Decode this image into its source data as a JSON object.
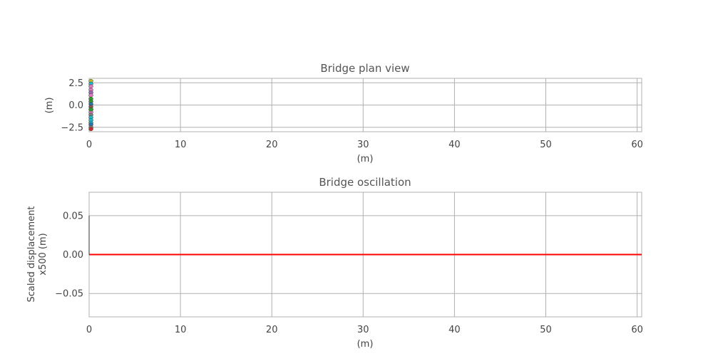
{
  "chart_data": [
    {
      "type": "scatter",
      "title": "Bridge plan view",
      "xlabel": "(m)",
      "ylabel": "(m)",
      "xlim": [
        0,
        60.5
      ],
      "ylim": [
        -3,
        3
      ],
      "xticks": [
        0,
        10,
        20,
        30,
        40,
        50,
        60
      ],
      "xtick_labels": [
        "0",
        "10",
        "20",
        "30",
        "40",
        "50",
        "60"
      ],
      "yticks": [
        2.5,
        0.0,
        -2.5
      ],
      "ytick_labels": [
        "2.5",
        "0.0",
        "−2.5"
      ],
      "grid": true,
      "series": [
        {
          "x": [
            0.2,
            0.2,
            0.2,
            0.2,
            0.2,
            0.2,
            0.2,
            0.2,
            0.2,
            0.2,
            0.2,
            0.2,
            0.2,
            0.2,
            0.2,
            0.2,
            0.2,
            0.2,
            0.2,
            0.2
          ],
          "y": [
            2.7,
            2.4,
            2.1,
            1.7,
            1.4,
            1.1,
            0.7,
            0.4,
            0.1,
            -0.2,
            -0.5,
            -0.8,
            -1.1,
            -1.4,
            -1.7,
            -2.0,
            -2.2,
            -2.5,
            -2.7,
            -0.5
          ],
          "colors": [
            "#bcbd22",
            "#17becf",
            "#e377c2",
            "#e377c2",
            "#9467bd",
            "#e377c2",
            "#2ca02c",
            "#2ca02c",
            "#1f77b4",
            "#8c564b",
            "#ff7f0e",
            "#e377c2",
            "#7f7f7f",
            "#17becf",
            "#17becf",
            "#17becf",
            "#1f77b4",
            "#7f7f7f",
            "#d62728",
            "#2ca02c"
          ]
        }
      ]
    },
    {
      "type": "line",
      "title": "Bridge oscillation",
      "xlabel": "(m)",
      "ylabel_lines": [
        "Scaled displacement",
        "x500 (m)"
      ],
      "xlim": [
        0,
        60.5
      ],
      "ylim": [
        -0.08,
        0.08
      ],
      "xticks": [
        0,
        10,
        20,
        30,
        40,
        50,
        60
      ],
      "xtick_labels": [
        "0",
        "10",
        "20",
        "30",
        "40",
        "50",
        "60"
      ],
      "yticks": [
        0.05,
        0.0,
        -0.05
      ],
      "ytick_labels": [
        "0.05",
        "0.00",
        "−0.05"
      ],
      "grid": true,
      "series": [
        {
          "x": [
            0,
            60.5
          ],
          "y": [
            0,
            0
          ],
          "color": "#ff0000"
        },
        {
          "x": [
            0,
            0
          ],
          "y": [
            0.05,
            0
          ],
          "color": "#333333"
        }
      ]
    }
  ]
}
